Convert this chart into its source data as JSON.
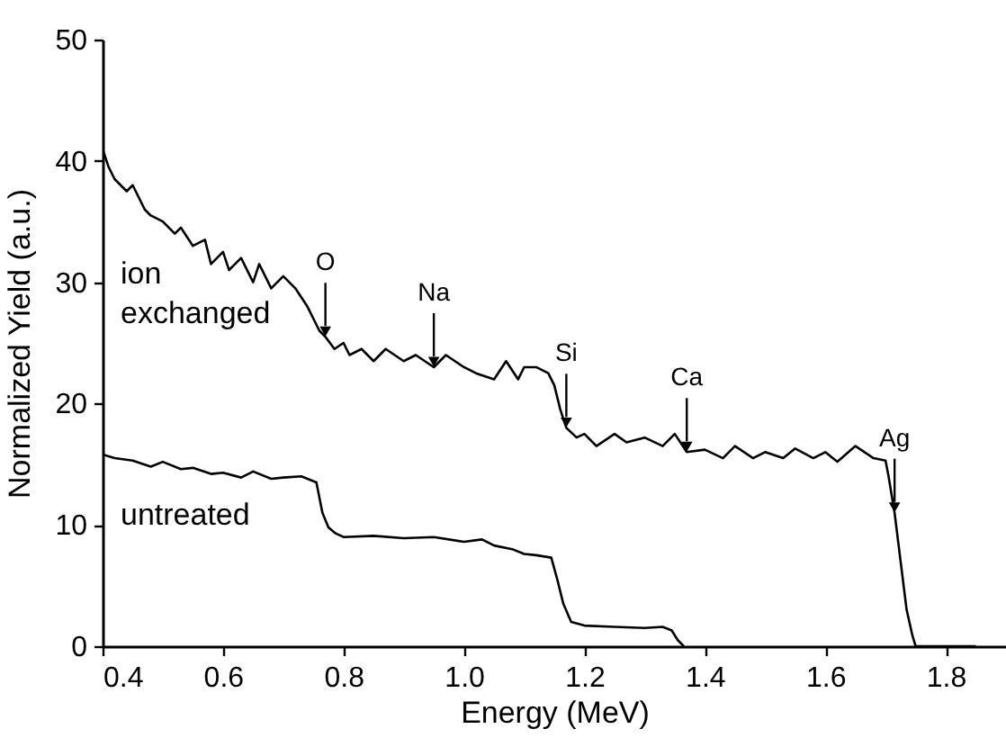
{
  "chart_data": {
    "type": "line",
    "xlabel": "Energy (MeV)",
    "ylabel": "Normalized Yield (a.u.)",
    "xlim": [
      0.4,
      1.9
    ],
    "xticks": [
      0.4,
      0.6,
      0.8,
      {
        "value": 1,
        "label": "1.0"
      },
      1.2,
      1.4,
      1.6,
      1.8
    ],
    "ylim": [
      0,
      50
    ],
    "yticks": [
      0,
      10,
      20,
      30,
      40,
      50
    ],
    "grid": false,
    "marker": "none",
    "line_style": "solid",
    "series": [
      {
        "name": "ion exchanged",
        "color": "#000000",
        "x": [
          0.4,
          0.41,
          0.42,
          0.44,
          0.45,
          0.47,
          0.48,
          0.5,
          0.52,
          0.53,
          0.55,
          0.57,
          0.58,
          0.6,
          0.61,
          0.63,
          0.65,
          0.66,
          0.68,
          0.7,
          0.72,
          0.74,
          0.75,
          0.76,
          0.77,
          0.785,
          0.8,
          0.81,
          0.83,
          0.85,
          0.87,
          0.9,
          0.92,
          0.95,
          0.97,
          1.0,
          1.02,
          1.05,
          1.07,
          1.09,
          1.1,
          1.12,
          1.14,
          1.15,
          1.16,
          1.17,
          1.187,
          1.2,
          1.22,
          1.25,
          1.27,
          1.3,
          1.33,
          1.35,
          1.37,
          1.4,
          1.43,
          1.45,
          1.48,
          1.5,
          1.53,
          1.55,
          1.58,
          1.6,
          1.62,
          1.65,
          1.68,
          1.7,
          1.705,
          1.715,
          1.725,
          1.735,
          1.745,
          1.75,
          1.8,
          1.85
        ],
        "values": [
          41,
          39.5,
          38.5,
          37.5,
          38,
          36,
          35.5,
          35,
          34,
          34.5,
          33,
          33.5,
          31.5,
          32.5,
          31,
          32,
          30,
          31.5,
          29.5,
          30.5,
          29.5,
          28,
          27,
          26,
          25.5,
          24.5,
          25,
          24,
          24.5,
          23.5,
          24.5,
          23.5,
          24,
          23,
          24,
          23,
          22.5,
          22,
          23.5,
          22,
          23,
          23,
          22.5,
          21.5,
          19.5,
          18,
          17.2,
          17.5,
          16.5,
          17.5,
          16.8,
          17.2,
          16.5,
          17.5,
          16,
          16.2,
          15.5,
          16.5,
          15.5,
          16,
          15.5,
          16.3,
          15.5,
          16,
          15.2,
          16.5,
          15.5,
          15.3,
          14,
          11,
          7,
          3,
          0.8,
          0,
          0,
          0
        ]
      },
      {
        "name": "untreated",
        "color": "#000000",
        "x": [
          0.4,
          0.42,
          0.45,
          0.48,
          0.5,
          0.53,
          0.55,
          0.58,
          0.6,
          0.63,
          0.65,
          0.68,
          0.7,
          0.73,
          0.755,
          0.765,
          0.775,
          0.787,
          0.8,
          0.85,
          0.9,
          0.95,
          1.0,
          1.03,
          1.05,
          1.08,
          1.1,
          1.12,
          1.145,
          1.155,
          1.165,
          1.178,
          1.2,
          1.25,
          1.3,
          1.33,
          1.345,
          1.355,
          1.365
        ],
        "values": [
          15.8,
          15.5,
          15.3,
          14.8,
          15.2,
          14.6,
          14.7,
          14.2,
          14.3,
          13.9,
          14.4,
          13.8,
          13.9,
          14,
          13.5,
          11,
          9.8,
          9.3,
          9,
          9.1,
          8.9,
          9,
          8.6,
          8.8,
          8.3,
          8,
          7.6,
          7.5,
          7.3,
          5.5,
          3.5,
          2,
          1.7,
          1.6,
          1.5,
          1.6,
          1.3,
          0.5,
          0
        ]
      }
    ],
    "annotations": [
      {
        "text": "O",
        "x": 0.77,
        "y": 25.5
      },
      {
        "text": "Na",
        "x": 0.95,
        "y": 23
      },
      {
        "text": "Si",
        "x": 1.17,
        "y": 18
      },
      {
        "text": "Ca",
        "x": 1.37,
        "y": 16
      },
      {
        "text": "Ag",
        "x": 1.715,
        "y": 11
      }
    ]
  }
}
